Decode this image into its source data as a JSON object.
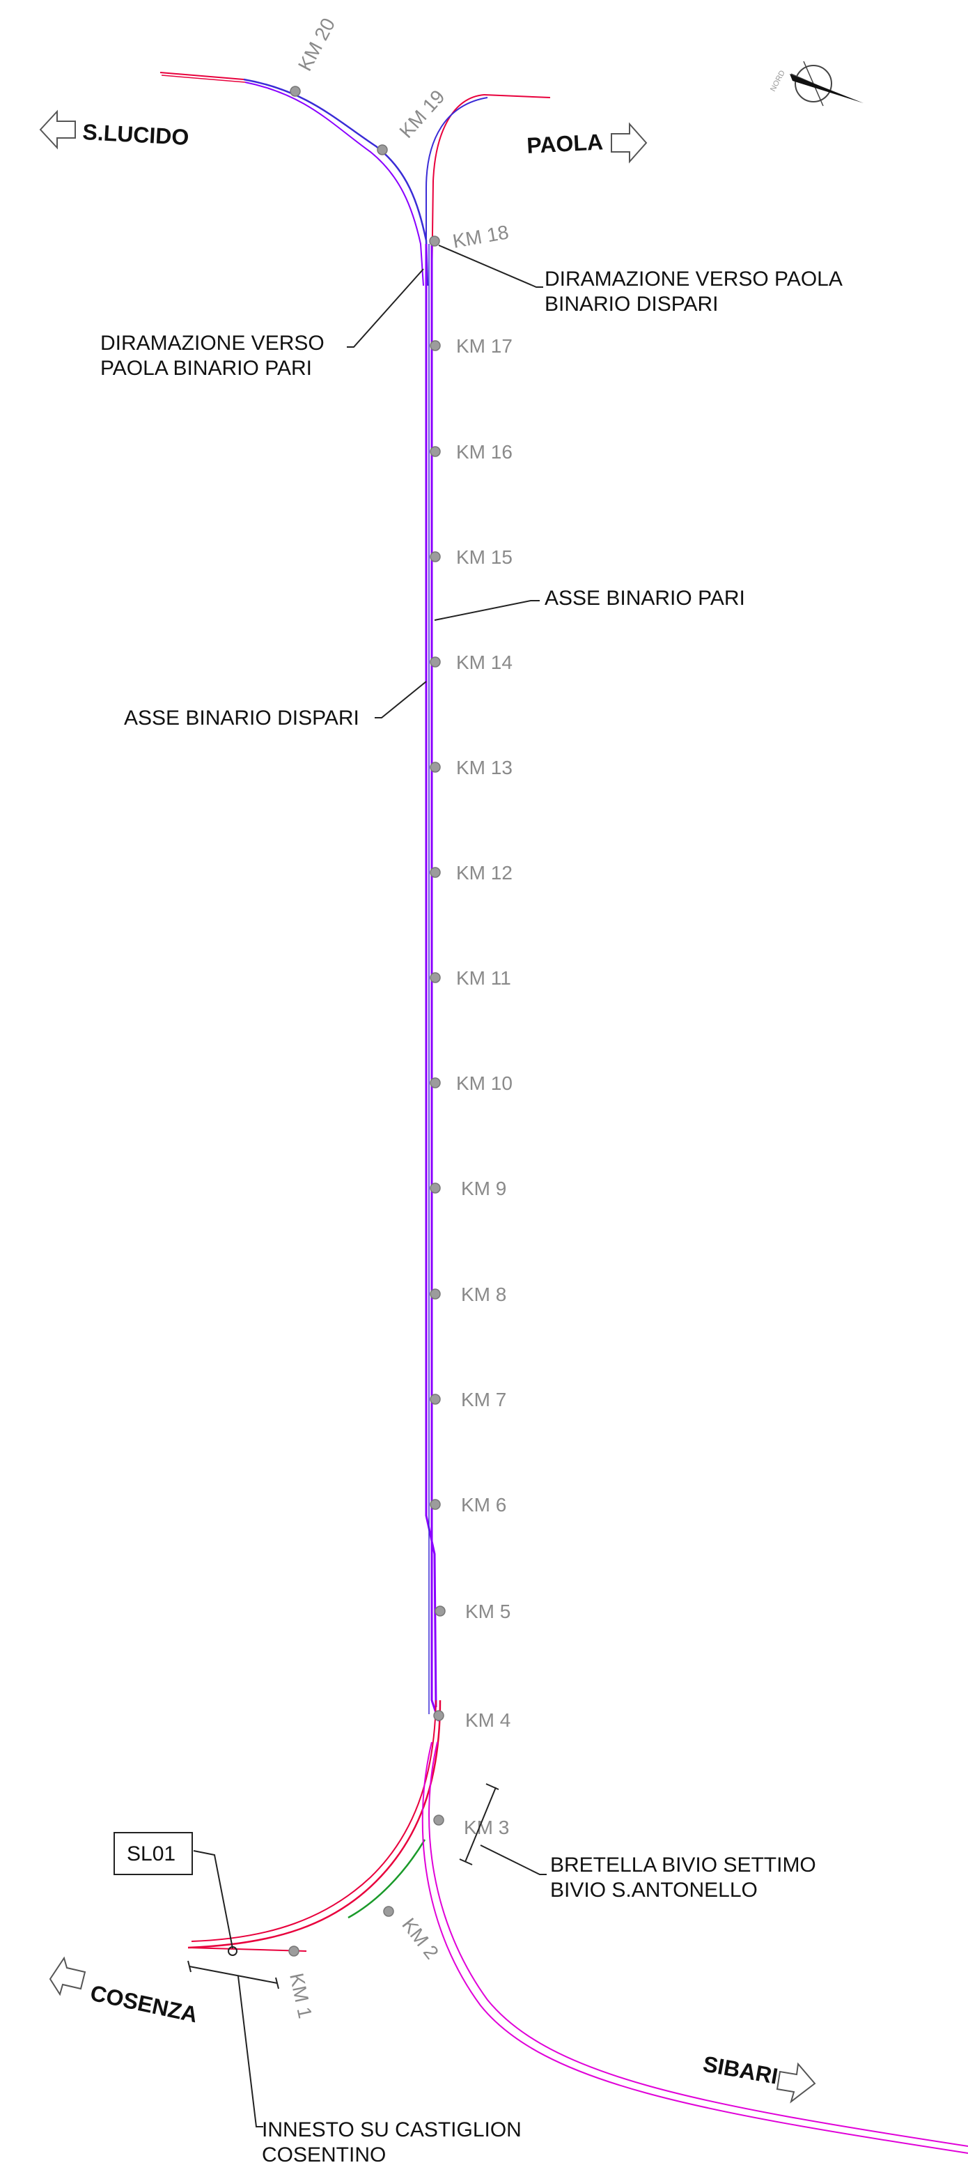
{
  "directions": {
    "s_lucido": "S.LUCIDO",
    "paola": "PAOLA",
    "cosenza": "COSENZA",
    "sibari": "SIBARI"
  },
  "km_labels": [
    "KM 1",
    "KM 2",
    "KM 3",
    "KM 4",
    "KM 5",
    "KM 6",
    "KM 7",
    "KM 8",
    "KM 9",
    "KM 10",
    "KM 11",
    "KM 12",
    "KM 13",
    "KM 14",
    "KM 15",
    "KM 16",
    "KM 17",
    "KM 18",
    "KM 19",
    "KM 20"
  ],
  "annotations": {
    "diramazione_dispari_l1": "DIRAMAZIONE VERSO PAOLA",
    "diramazione_dispari_l2": "BINARIO DISPARI",
    "diramazione_pari_l1": "DIRAMAZIONE VERSO",
    "diramazione_pari_l2": "PAOLA BINARIO PARI",
    "asse_pari": "ASSE BINARIO PARI",
    "asse_dispari": "ASSE BINARIO DISPARI",
    "bretella_l1": "BRETELLA BIVIO SETTIMO",
    "bretella_l2": "BIVIO S.ANTONELLO",
    "innesto_l1": "INNESTO SU CASTIGLION",
    "innesto_l2": "COSENTINO"
  },
  "section_box": "SL01",
  "compass_label": "NORD",
  "colors": {
    "main_track": "#8a00ff",
    "track_blue": "#3a2bd6",
    "bretella": "#e8003c",
    "sibari_branch": "#e000d8",
    "green_segment": "#1a9a2a"
  }
}
